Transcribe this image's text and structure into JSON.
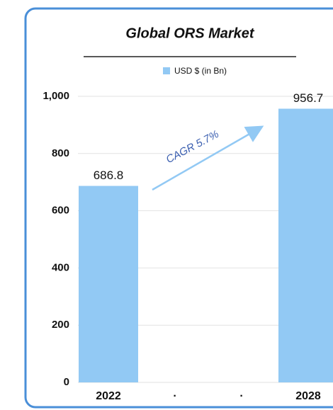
{
  "chart_data": {
    "type": "bar",
    "title": "Global ORS Market",
    "legend": "USD $ (in Bn)",
    "categories": [
      "2022",
      "·",
      "·",
      "2028"
    ],
    "values": [
      686.8,
      null,
      null,
      956.7
    ],
    "color": "#92c9f4",
    "ylim": [
      0,
      1000
    ],
    "yticks": [
      0,
      200,
      400,
      600,
      800,
      {
        "value": 1000,
        "label": "1,000"
      }
    ],
    "grid": true,
    "annotation": "CAGR 5.7%"
  }
}
